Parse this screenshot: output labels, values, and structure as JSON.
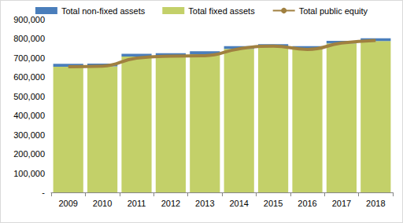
{
  "chart_data": {
    "type": "bar",
    "stacked": true,
    "grid": false,
    "legend": "top",
    "categories": [
      "2009",
      "2010",
      "2011",
      "2012",
      "2013",
      "2014",
      "2015",
      "2016",
      "2017",
      "2018"
    ],
    "series": [
      {
        "name": "Total non-fixed assets",
        "type": "bar",
        "color": "#4a7ebb",
        "values": [
          15000,
          14000,
          14000,
          13000,
          15000,
          14000,
          14000,
          14000,
          14000,
          14000
        ]
      },
      {
        "name": "Total fixed assets",
        "type": "bar",
        "color": "#c3d069",
        "values": [
          655000,
          657000,
          708000,
          712000,
          720000,
          748000,
          758000,
          748000,
          776000,
          789000
        ]
      },
      {
        "name": "Total public equity",
        "type": "line",
        "color": "#a08040",
        "line_style": "solid",
        "values": [
          655000,
          658000,
          700000,
          710000,
          712000,
          748000,
          762000,
          745000,
          778000,
          792000
        ]
      }
    ],
    "ylim": [
      0,
      900000
    ],
    "yticks": [
      {
        "value": 0,
        "label": "-"
      },
      {
        "value": 100000,
        "label": "100,000"
      },
      {
        "value": 200000,
        "label": "200,000"
      },
      {
        "value": 300000,
        "label": "300,000"
      },
      {
        "value": 400000,
        "label": "400,000"
      },
      {
        "value": 500000,
        "label": "500,000"
      },
      {
        "value": 600000,
        "label": "600,000"
      },
      {
        "value": 700000,
        "label": "700,000"
      },
      {
        "value": 800000,
        "label": "800,000"
      },
      {
        "value": 900000,
        "label": "900,000"
      }
    ]
  }
}
